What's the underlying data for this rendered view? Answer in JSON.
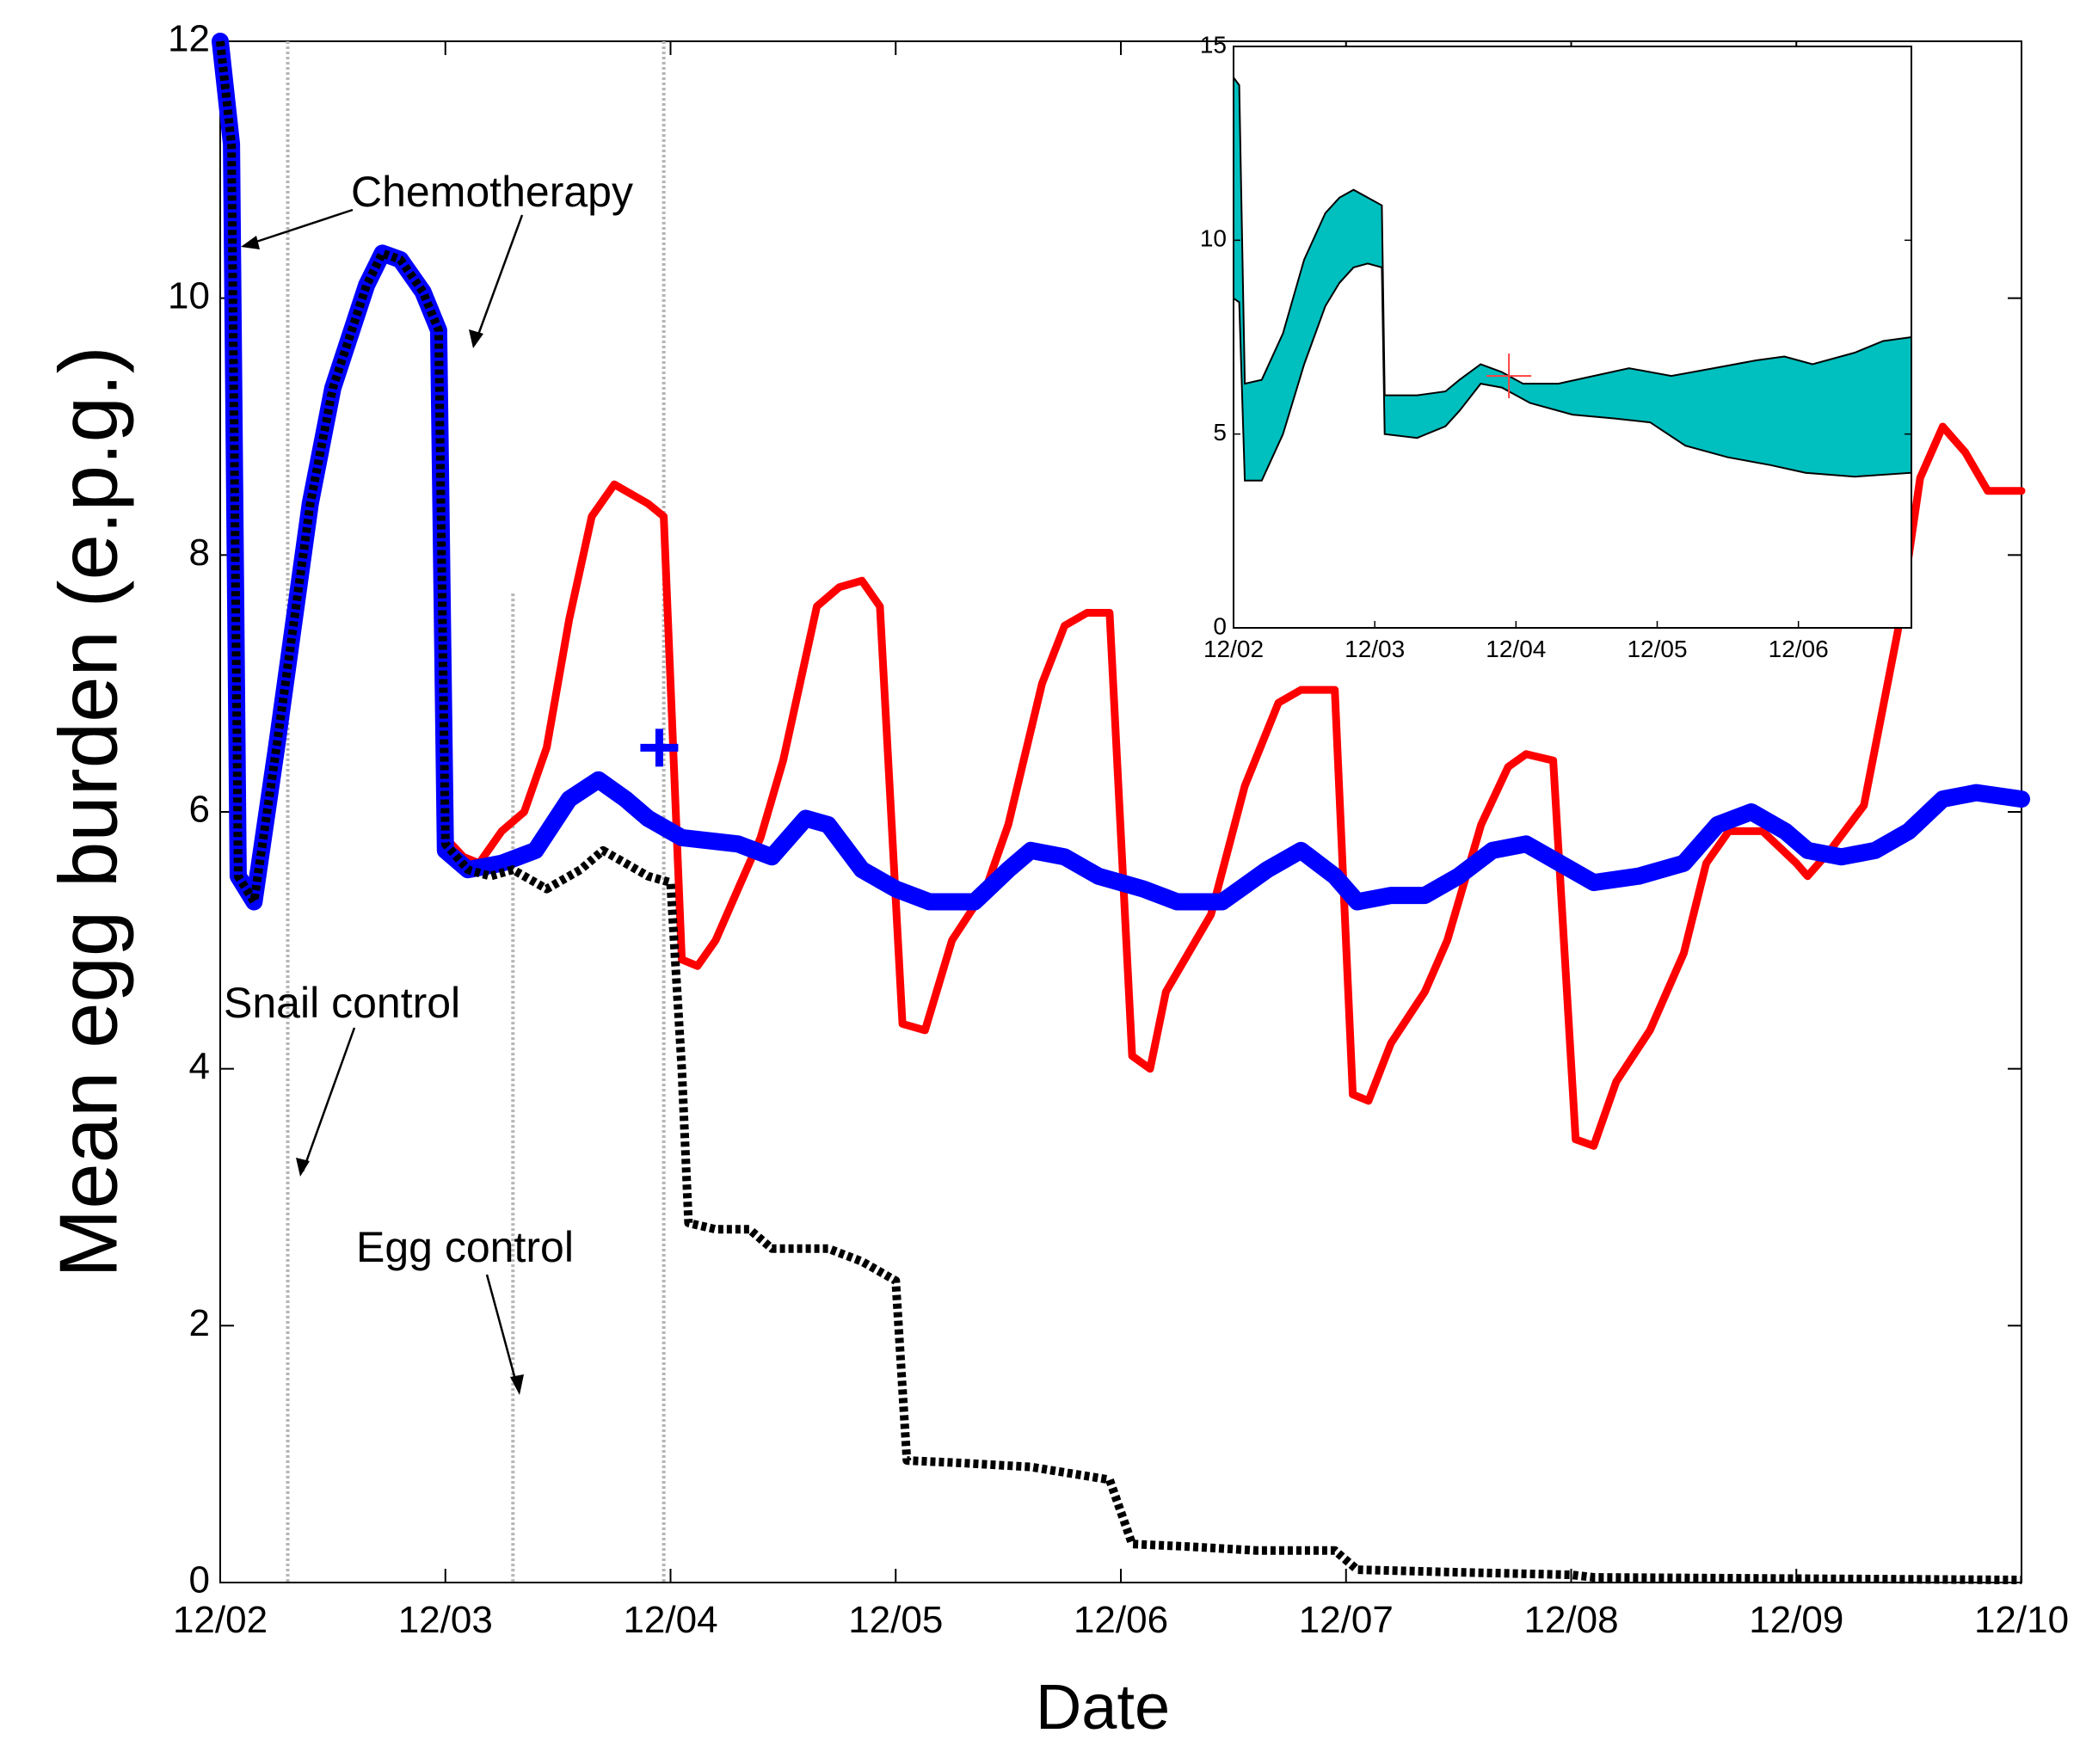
{
  "chart_data": [
    {
      "type": "line",
      "title": "",
      "xlabel": "Date",
      "ylabel": "Mean egg burden (e.p.g.)",
      "xlim": [
        0,
        8
      ],
      "ylim": [
        0,
        12
      ],
      "x_ticks": [
        {
          "v": 0,
          "label": "12/02"
        },
        {
          "v": 1,
          "label": "12/03"
        },
        {
          "v": 2,
          "label": "12/04"
        },
        {
          "v": 3,
          "label": "12/05"
        },
        {
          "v": 4,
          "label": "12/06"
        },
        {
          "v": 5,
          "label": "12/07"
        },
        {
          "v": 6,
          "label": "12/08"
        },
        {
          "v": 7,
          "label": "12/09"
        },
        {
          "v": 8,
          "label": "12/10"
        }
      ],
      "y_ticks": [
        {
          "v": 0,
          "label": "0"
        },
        {
          "v": 2,
          "label": "2"
        },
        {
          "v": 4,
          "label": "4"
        },
        {
          "v": 6,
          "label": "6"
        },
        {
          "v": 8,
          "label": "8"
        },
        {
          "v": 10,
          "label": "10"
        },
        {
          "v": 12,
          "label": "12"
        }
      ],
      "vlines": [
        {
          "name": "snail-control-line",
          "x": 0.3,
          "y_top": 12
        },
        {
          "name": "egg-control-line",
          "x": 1.3,
          "y_top": 7.7
        },
        {
          "name": "marker-line",
          "x": 1.97,
          "y_top": 12
        }
      ],
      "series": [
        {
          "name": "chemotherapy-only",
          "color": "#ff0000",
          "style": "solid",
          "points": [
            [
              0,
              12
            ],
            [
              0.05,
              11.2
            ],
            [
              0.08,
              5.5
            ],
            [
              0.15,
              5.3
            ],
            [
              0.25,
              6.5
            ],
            [
              0.4,
              8.4
            ],
            [
              0.5,
              9.3
            ],
            [
              0.65,
              10.1
            ],
            [
              0.72,
              10.35
            ],
            [
              0.8,
              10.3
            ],
            [
              0.9,
              10.05
            ],
            [
              0.97,
              9.75
            ],
            [
              1.0,
              5.8
            ],
            [
              1.08,
              5.65
            ],
            [
              1.15,
              5.6
            ],
            [
              1.25,
              5.85
            ],
            [
              1.35,
              6.0
            ],
            [
              1.45,
              6.5
            ],
            [
              1.55,
              7.5
            ],
            [
              1.65,
              8.3
            ],
            [
              1.75,
              8.55
            ],
            [
              1.85,
              8.45
            ],
            [
              1.9,
              8.4
            ],
            [
              1.97,
              8.3
            ],
            [
              2.05,
              4.85
            ],
            [
              2.12,
              4.8
            ],
            [
              2.2,
              5.0
            ],
            [
              2.3,
              5.4
            ],
            [
              2.4,
              5.8
            ],
            [
              2.5,
              6.4
            ],
            [
              2.65,
              7.6
            ],
            [
              2.75,
              7.75
            ],
            [
              2.85,
              7.8
            ],
            [
              2.93,
              7.6
            ],
            [
              3.03,
              4.35
            ],
            [
              3.13,
              4.3
            ],
            [
              3.25,
              5.0
            ],
            [
              3.4,
              5.4
            ],
            [
              3.5,
              5.9
            ],
            [
              3.65,
              7.0
            ],
            [
              3.75,
              7.45
            ],
            [
              3.85,
              7.55
            ],
            [
              3.95,
              7.55
            ],
            [
              4.05,
              4.1
            ],
            [
              4.13,
              4.0
            ],
            [
              4.2,
              4.6
            ],
            [
              4.3,
              4.9
            ],
            [
              4.4,
              5.2
            ],
            [
              4.55,
              6.2
            ],
            [
              4.7,
              6.85
            ],
            [
              4.8,
              6.95
            ],
            [
              4.95,
              6.95
            ],
            [
              5.03,
              3.8
            ],
            [
              5.1,
              3.75
            ],
            [
              5.2,
              4.2
            ],
            [
              5.35,
              4.6
            ],
            [
              5.45,
              5.0
            ],
            [
              5.6,
              5.9
            ],
            [
              5.72,
              6.35
            ],
            [
              5.8,
              6.45
            ],
            [
              5.92,
              6.4
            ],
            [
              6.02,
              3.45
            ],
            [
              6.1,
              3.4
            ],
            [
              6.2,
              3.9
            ],
            [
              6.35,
              4.3
            ],
            [
              6.5,
              4.9
            ],
            [
              6.6,
              5.6
            ],
            [
              6.7,
              5.85
            ],
            [
              6.85,
              5.85
            ],
            [
              7.0,
              5.6
            ],
            [
              7.05,
              5.5
            ],
            [
              7.15,
              5.7
            ],
            [
              7.3,
              6.05
            ],
            [
              7.45,
              7.4
            ],
            [
              7.55,
              8.6
            ],
            [
              7.65,
              9.0
            ],
            [
              7.75,
              8.8
            ],
            [
              7.85,
              8.5
            ],
            [
              8.0,
              8.5
            ]
          ]
        },
        {
          "name": "chemotherapy-and-snail-control",
          "color": "#0000ff",
          "style": "thick",
          "points": [
            [
              0,
              12
            ],
            [
              0.05,
              11.2
            ],
            [
              0.08,
              5.5
            ],
            [
              0.15,
              5.3
            ],
            [
              0.25,
              6.5
            ],
            [
              0.4,
              8.4
            ],
            [
              0.5,
              9.3
            ],
            [
              0.65,
              10.1
            ],
            [
              0.72,
              10.35
            ],
            [
              0.8,
              10.3
            ],
            [
              0.9,
              10.05
            ],
            [
              0.97,
              9.75
            ],
            [
              1.0,
              5.7
            ],
            [
              1.1,
              5.55
            ],
            [
              1.25,
              5.6
            ],
            [
              1.4,
              5.7
            ],
            [
              1.55,
              6.1
            ],
            [
              1.68,
              6.25
            ],
            [
              1.8,
              6.1
            ],
            [
              1.9,
              5.95
            ],
            [
              2.05,
              5.8
            ],
            [
              2.3,
              5.75
            ],
            [
              2.45,
              5.65
            ],
            [
              2.6,
              5.95
            ],
            [
              2.7,
              5.9
            ],
            [
              2.85,
              5.55
            ],
            [
              3.0,
              5.4
            ],
            [
              3.15,
              5.3
            ],
            [
              3.35,
              5.3
            ],
            [
              3.5,
              5.55
            ],
            [
              3.6,
              5.7
            ],
            [
              3.75,
              5.65
            ],
            [
              3.9,
              5.5
            ],
            [
              4.1,
              5.4
            ],
            [
              4.25,
              5.3
            ],
            [
              4.45,
              5.3
            ],
            [
              4.65,
              5.55
            ],
            [
              4.8,
              5.7
            ],
            [
              4.95,
              5.5
            ],
            [
              5.05,
              5.3
            ],
            [
              5.2,
              5.35
            ],
            [
              5.35,
              5.35
            ],
            [
              5.5,
              5.5
            ],
            [
              5.65,
              5.7
            ],
            [
              5.8,
              5.75
            ],
            [
              5.95,
              5.6
            ],
            [
              6.1,
              5.45
            ],
            [
              6.3,
              5.5
            ],
            [
              6.5,
              5.6
            ],
            [
              6.65,
              5.9
            ],
            [
              6.8,
              6.0
            ],
            [
              6.95,
              5.85
            ],
            [
              7.05,
              5.7
            ],
            [
              7.2,
              5.65
            ],
            [
              7.35,
              5.7
            ],
            [
              7.5,
              5.85
            ],
            [
              7.65,
              6.1
            ],
            [
              7.8,
              6.15
            ],
            [
              8.0,
              6.1
            ]
          ]
        },
        {
          "name": "chemotherapy-snail-and-egg-control",
          "color": "#000000",
          "style": "dotted",
          "points": [
            [
              0,
              12
            ],
            [
              0.05,
              11.2
            ],
            [
              0.08,
              5.5
            ],
            [
              0.15,
              5.3
            ],
            [
              0.25,
              6.5
            ],
            [
              0.4,
              8.4
            ],
            [
              0.5,
              9.3
            ],
            [
              0.65,
              10.1
            ],
            [
              0.72,
              10.35
            ],
            [
              0.8,
              10.3
            ],
            [
              0.9,
              10.05
            ],
            [
              0.97,
              9.75
            ],
            [
              1.0,
              5.75
            ],
            [
              1.1,
              5.55
            ],
            [
              1.2,
              5.5
            ],
            [
              1.3,
              5.55
            ],
            [
              1.45,
              5.4
            ],
            [
              1.6,
              5.55
            ],
            [
              1.7,
              5.7
            ],
            [
              1.8,
              5.6
            ],
            [
              1.9,
              5.5
            ],
            [
              2.0,
              5.45
            ],
            [
              2.05,
              4.0
            ],
            [
              2.08,
              2.8
            ],
            [
              2.2,
              2.75
            ],
            [
              2.35,
              2.75
            ],
            [
              2.45,
              2.6
            ],
            [
              2.7,
              2.6
            ],
            [
              2.85,
              2.5
            ],
            [
              3.0,
              2.35
            ],
            [
              3.05,
              0.95
            ],
            [
              3.3,
              0.93
            ],
            [
              3.6,
              0.9
            ],
            [
              3.95,
              0.8
            ],
            [
              4.05,
              0.3
            ],
            [
              4.3,
              0.28
            ],
            [
              4.6,
              0.25
            ],
            [
              4.95,
              0.25
            ],
            [
              5.05,
              0.1
            ],
            [
              5.5,
              0.08
            ],
            [
              6.0,
              0.06
            ],
            [
              6.1,
              0.04
            ],
            [
              7.0,
              0.03
            ],
            [
              8.0,
              0.02
            ]
          ]
        }
      ],
      "marker": {
        "name": "blue-plus-marker",
        "x": 1.95,
        "y": 6.5,
        "color": "#0000ff"
      },
      "annotations": [
        {
          "name": "chemotherapy-annotation",
          "text": "Chemotherapy"
        },
        {
          "name": "snail-control-annotation",
          "text": "Snail control"
        },
        {
          "name": "egg-control-annotation",
          "text": "Egg control"
        }
      ]
    },
    {
      "type": "area",
      "inset": true,
      "title": "",
      "xlim": [
        0,
        4.8
      ],
      "ylim": [
        0,
        15
      ],
      "x_ticks": [
        {
          "v": 0,
          "label": "12/02"
        },
        {
          "v": 1,
          "label": "12/03"
        },
        {
          "v": 2,
          "label": "12/04"
        },
        {
          "v": 3,
          "label": "12/05"
        },
        {
          "v": 4,
          "label": "12/06"
        }
      ],
      "y_ticks": [
        {
          "v": 0,
          "label": "0"
        },
        {
          "v": 5,
          "label": "5"
        },
        {
          "v": 10,
          "label": "10"
        },
        {
          "v": 15,
          "label": "15"
        }
      ],
      "band_color": "#00bfbf",
      "upper": [
        [
          0,
          14.2
        ],
        [
          0.04,
          14.0
        ],
        [
          0.08,
          6.3
        ],
        [
          0.2,
          6.4
        ],
        [
          0.35,
          7.6
        ],
        [
          0.5,
          9.5
        ],
        [
          0.65,
          10.7
        ],
        [
          0.75,
          11.1
        ],
        [
          0.85,
          11.3
        ],
        [
          0.95,
          11.1
        ],
        [
          1.05,
          10.9
        ],
        [
          1.07,
          6.0
        ],
        [
          1.3,
          6.0
        ],
        [
          1.5,
          6.1
        ],
        [
          1.6,
          6.4
        ],
        [
          1.75,
          6.8
        ],
        [
          1.9,
          6.6
        ],
        [
          2.05,
          6.3
        ],
        [
          2.3,
          6.3
        ],
        [
          2.55,
          6.5
        ],
        [
          2.8,
          6.7
        ],
        [
          3.1,
          6.5
        ],
        [
          3.4,
          6.7
        ],
        [
          3.7,
          6.9
        ],
        [
          3.9,
          7.0
        ],
        [
          4.1,
          6.8
        ],
        [
          4.4,
          7.1
        ],
        [
          4.6,
          7.4
        ],
        [
          4.8,
          7.5
        ]
      ],
      "lower": [
        [
          0,
          8.5
        ],
        [
          0.04,
          8.4
        ],
        [
          0.08,
          3.8
        ],
        [
          0.2,
          3.8
        ],
        [
          0.35,
          5.0
        ],
        [
          0.5,
          6.8
        ],
        [
          0.65,
          8.3
        ],
        [
          0.75,
          8.9
        ],
        [
          0.85,
          9.3
        ],
        [
          0.95,
          9.4
        ],
        [
          1.05,
          9.3
        ],
        [
          1.07,
          5.0
        ],
        [
          1.3,
          4.9
        ],
        [
          1.5,
          5.2
        ],
        [
          1.6,
          5.6
        ],
        [
          1.75,
          6.3
        ],
        [
          1.9,
          6.2
        ],
        [
          2.1,
          5.8
        ],
        [
          2.4,
          5.5
        ],
        [
          2.7,
          5.4
        ],
        [
          2.95,
          5.3
        ],
        [
          3.2,
          4.7
        ],
        [
          3.5,
          4.4
        ],
        [
          3.8,
          4.2
        ],
        [
          4.05,
          4.0
        ],
        [
          4.4,
          3.9
        ],
        [
          4.8,
          4.0
        ]
      ],
      "marker": {
        "name": "inset-red-cross-marker",
        "x": 1.95,
        "y": 6.5,
        "color": "#ff4040"
      }
    }
  ]
}
